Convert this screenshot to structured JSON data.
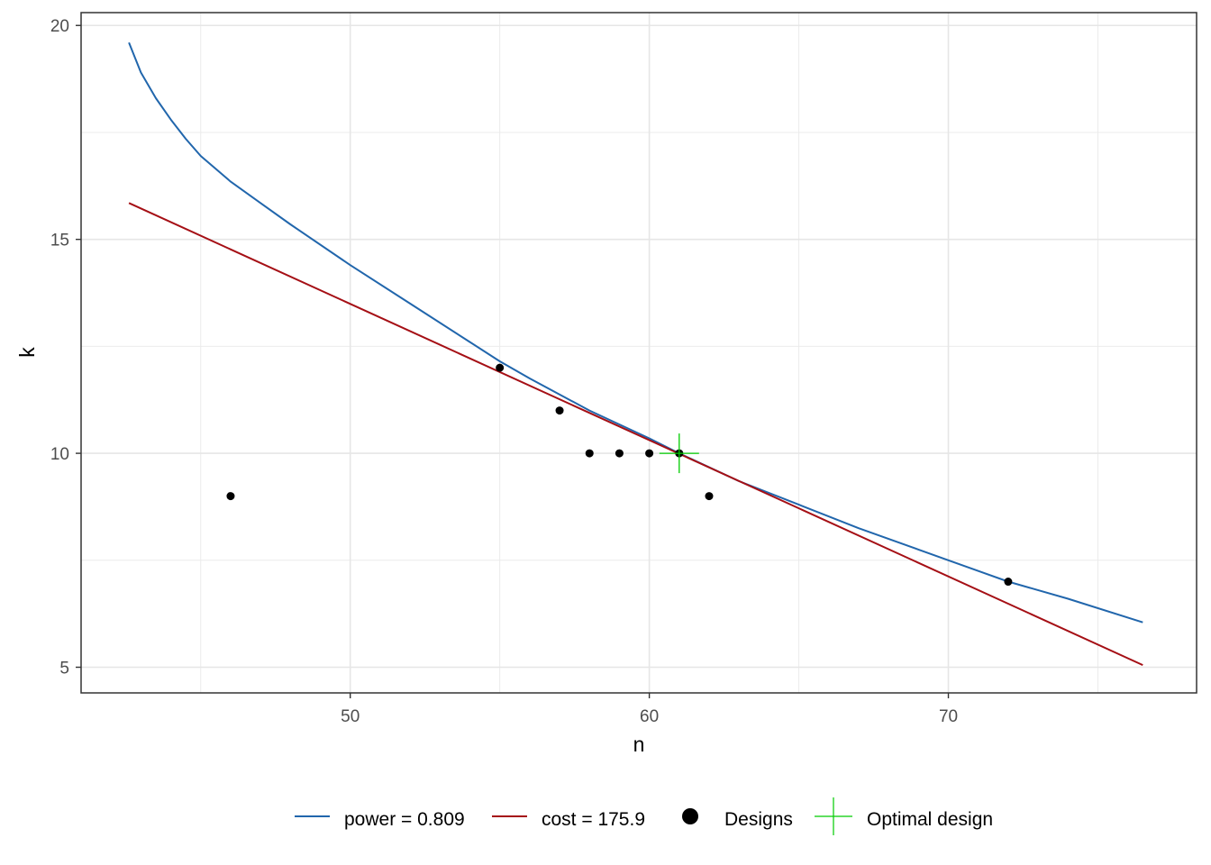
{
  "chart_data": {
    "type": "line",
    "title": "",
    "xlabel": "n",
    "ylabel": "k",
    "xlim": [
      41,
      78.3
    ],
    "ylim": [
      4.4,
      20.3
    ],
    "x_ticks": [
      50,
      60,
      70
    ],
    "y_ticks": [
      5,
      10,
      15,
      20
    ],
    "grid": true,
    "legend_position": "bottom",
    "series": [
      {
        "name": "power = 0.809",
        "color": "#2166ac",
        "points": [
          [
            42.6,
            19.6
          ],
          [
            43.0,
            18.9
          ],
          [
            43.5,
            18.3
          ],
          [
            44.0,
            17.8
          ],
          [
            44.5,
            17.35
          ],
          [
            45.0,
            16.95
          ],
          [
            46.0,
            16.35
          ],
          [
            47.0,
            15.85
          ],
          [
            48.0,
            15.35
          ],
          [
            50.0,
            14.4
          ],
          [
            52.0,
            13.5
          ],
          [
            54.0,
            12.6
          ],
          [
            55.0,
            12.15
          ],
          [
            56.0,
            11.75
          ],
          [
            58.0,
            11.0
          ],
          [
            60.0,
            10.35
          ],
          [
            61.0,
            10.0
          ],
          [
            63.0,
            9.35
          ],
          [
            65.0,
            8.8
          ],
          [
            67.0,
            8.25
          ],
          [
            69.0,
            7.75
          ],
          [
            70.0,
            7.5
          ],
          [
            72.0,
            7.0
          ],
          [
            74.0,
            6.6
          ],
          [
            76.5,
            6.05
          ]
        ]
      },
      {
        "name": "cost = 175.9",
        "color": "#a50f15",
        "points": [
          [
            42.6,
            15.85
          ],
          [
            76.5,
            5.05
          ]
        ]
      }
    ],
    "designs": {
      "name": "Designs",
      "color": "#000000",
      "points": [
        [
          46,
          9
        ],
        [
          55,
          12
        ],
        [
          57,
          11
        ],
        [
          58,
          10
        ],
        [
          59,
          10
        ],
        [
          60,
          10
        ],
        [
          61,
          10
        ],
        [
          62,
          9
        ],
        [
          72,
          7
        ]
      ]
    },
    "optimal": {
      "name": "Optimal design",
      "color": "#00cc00",
      "point": [
        61,
        10
      ]
    }
  }
}
